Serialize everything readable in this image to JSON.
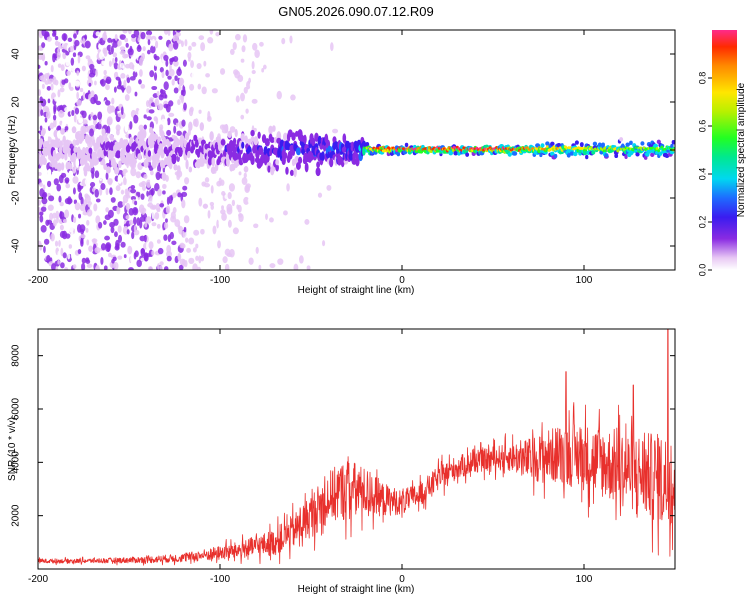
{
  "figure": {
    "title": "GN05.2026.090.07.12.R09"
  },
  "chart_data": [
    {
      "type": "heatmap",
      "title": "GN05.2026.090.07.12.R09",
      "xlabel": "Height of straight line (km)",
      "ylabel": "Frequency (Hz)",
      "xlim": [
        -200,
        150
      ],
      "ylim": [
        -50,
        50
      ],
      "xticks": [
        -200,
        -100,
        0,
        100
      ],
      "yticks": [
        -40,
        -20,
        0,
        20,
        40
      ],
      "xtick_labels": [
        "-200",
        "-100",
        "0",
        "100"
      ],
      "ytick_labels": [
        "-40",
        "-20",
        "0",
        "20",
        "40"
      ],
      "colorbar": {
        "label": "Normalized spectral amplitude",
        "range": [
          0,
          1
        ],
        "ticks": [
          0.0,
          0.2,
          0.4,
          0.6,
          0.8
        ],
        "tick_labels": [
          "0.0",
          "0.2",
          "0.4",
          "0.6",
          "0.8"
        ],
        "colormap": "rainbow (white-violet-blue-cyan-green-yellow-red)"
      },
      "description_points": [
        {
          "x": -200,
          "scatter_hz": 50,
          "peak_amplitude": 0.15
        },
        {
          "x": -150,
          "scatter_hz": 50,
          "peak_amplitude": 0.18
        },
        {
          "x": -120,
          "scatter_hz": 45,
          "peak_amplitude": 0.2
        },
        {
          "x": -80,
          "scatter_hz": 30,
          "peak_amplitude": 0.3
        },
        {
          "x": -50,
          "scatter_hz": 12,
          "peak_amplitude": 0.35
        },
        {
          "x": -25,
          "scatter_hz": 8,
          "peak_amplitude": 0.4
        },
        {
          "x": -15,
          "scatter_hz": 2,
          "peak_amplitude": 0.9
        },
        {
          "x": 50,
          "scatter_hz": 2,
          "peak_amplitude": 0.95
        },
        {
          "x": 100,
          "scatter_hz": 4,
          "peak_amplitude": 0.7
        },
        {
          "x": 150,
          "scatter_hz": 5,
          "peak_amplitude": 0.6
        }
      ]
    },
    {
      "type": "line",
      "xlabel": "Height of straight line (km)",
      "ylabel": "SNR (10 * v/v)",
      "xlim": [
        -200,
        150
      ],
      "ylim": [
        0,
        9000
      ],
      "xticks": [
        -200,
        -100,
        0,
        100
      ],
      "yticks": [
        2000,
        4000,
        6000,
        8000
      ],
      "xtick_labels": [
        "-200",
        "-100",
        "0",
        "100"
      ],
      "ytick_labels": [
        "2000",
        "4000",
        "6000",
        "8000"
      ],
      "color": "#e8302c",
      "series": [
        {
          "name": "SNR",
          "x": [
            -200,
            -180,
            -160,
            -140,
            -120,
            -100,
            -90,
            -80,
            -70,
            -60,
            -50,
            -40,
            -30,
            -20,
            -10,
            0,
            10,
            20,
            30,
            40,
            50,
            60,
            70,
            80,
            90,
            100,
            110,
            120,
            130,
            140,
            150
          ],
          "values": [
            300,
            300,
            320,
            350,
            420,
            600,
            700,
            850,
            1000,
            1400,
            2000,
            2700,
            3000,
            2900,
            2600,
            2500,
            2800,
            3400,
            3800,
            4000,
            4150,
            4200,
            4100,
            4250,
            4300,
            4200,
            4000,
            3800,
            3600,
            3400,
            3200
          ],
          "noise": [
            90,
            90,
            110,
            140,
            180,
            300,
            350,
            450,
            550,
            700,
            900,
            1100,
            1300,
            1000,
            700,
            500,
            500,
            500,
            500,
            450,
            500,
            600,
            900,
            1100,
            1300,
            1400,
            1500,
            1600,
            1700,
            1900,
            2100
          ]
        }
      ],
      "peaks": [
        {
          "x": 146,
          "value": 9000
        },
        {
          "x": 90,
          "value": 7400
        },
        {
          "x": 127,
          "value": 6900
        }
      ]
    }
  ]
}
